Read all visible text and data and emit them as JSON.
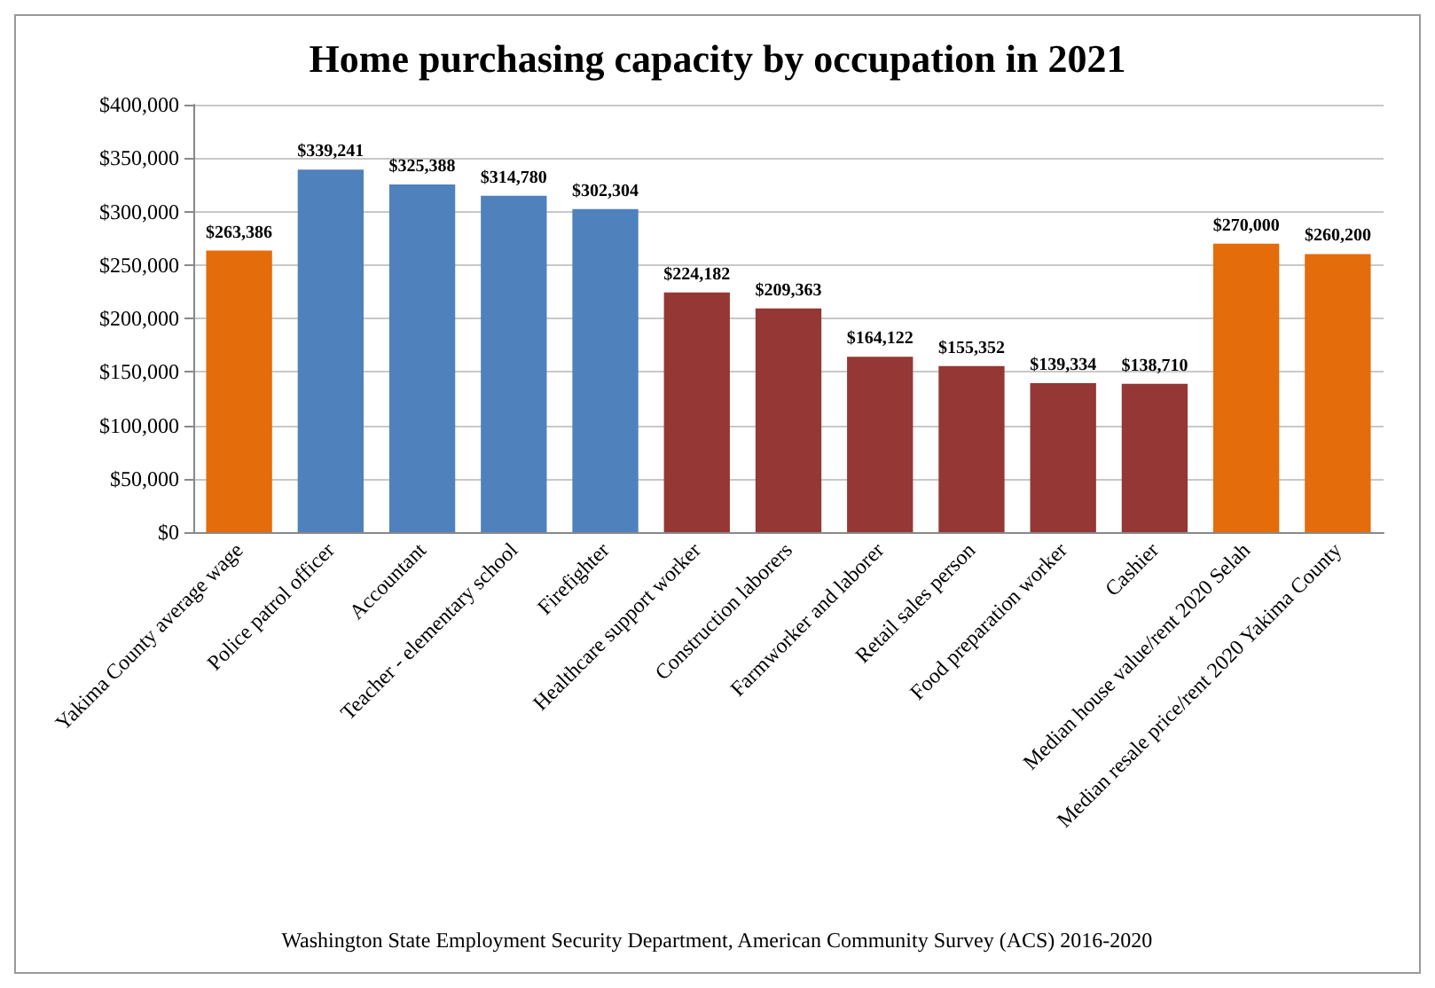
{
  "chart_data": {
    "type": "bar",
    "title": "Home purchasing capacity by occupation in 2021",
    "categories": [
      "Yakima County average wage",
      "Police patrol officer",
      "Accountant",
      "Teacher - elementary school",
      "Firefighter",
      "Healthcare support worker",
      "Construction laborers",
      "Farmworker and laborer",
      "Retail sales person",
      "Food preparation worker",
      "Cashier",
      "Median house value/rent 2020 Selah",
      "Median resale price/rent 2020 Yakima County"
    ],
    "values": [
      263386,
      339241,
      325388,
      314780,
      302304,
      224182,
      209363,
      164122,
      155352,
      139334,
      138710,
      270000,
      260200
    ],
    "colors": [
      "#e46c0a",
      "#4f81bd",
      "#4f81bd",
      "#4f81bd",
      "#4f81bd",
      "#953735",
      "#953735",
      "#953735",
      "#953735",
      "#953735",
      "#953735",
      "#e46c0a",
      "#e46c0a"
    ],
    "value_labels": [
      "$263,386",
      "$339,241",
      "$325,388",
      "$314,780",
      "$302,304",
      "$224,182",
      "$209,363",
      "$164,122",
      "$155,352",
      "$139,334",
      "$138,710",
      "$270,000",
      "$260,200"
    ],
    "ylim": [
      0,
      400000
    ],
    "yticks": [
      {
        "value": 0,
        "label": "$0"
      },
      {
        "value": 50000,
        "label": "$50,000"
      },
      {
        "value": 100000,
        "label": "$100,000"
      },
      {
        "value": 150000,
        "label": "$150,000"
      },
      {
        "value": 200000,
        "label": "$200,000"
      },
      {
        "value": 250000,
        "label": "$250,000"
      },
      {
        "value": 300000,
        "label": "$300,000"
      },
      {
        "value": 350000,
        "label": "$350,000"
      },
      {
        "value": 400000,
        "label": "$400,000"
      }
    ],
    "grid": "y",
    "annotations": [
      "Washington State Employment Security Department, American Community Survey (ACS) 2016-2020"
    ]
  }
}
